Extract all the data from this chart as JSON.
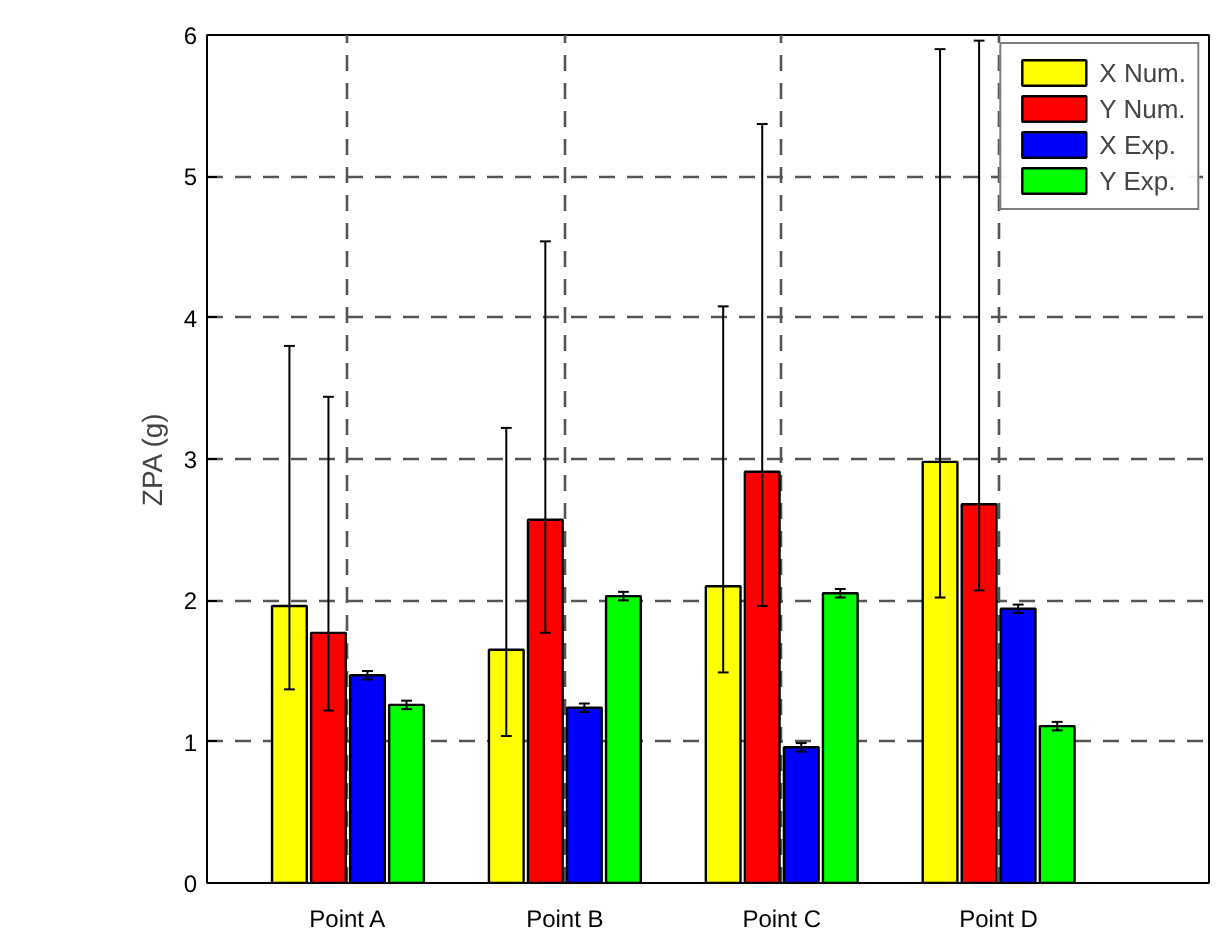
{
  "chart_data": {
    "type": "bar",
    "ylabel": "ZPA (g)",
    "categories": [
      "Point A",
      "Point B",
      "Point C",
      "Point D"
    ],
    "series": [
      {
        "name": "X Num.",
        "color": "#ffff00",
        "values": [
          1.96,
          1.65,
          2.1,
          2.98
        ],
        "errors": [
          [
            1.37,
            3.8
          ],
          [
            1.04,
            3.22
          ],
          [
            1.49,
            4.08
          ],
          [
            2.02,
            5.9
          ]
        ]
      },
      {
        "name": "Y Num.",
        "color": "#ff0000",
        "values": [
          1.77,
          2.57,
          2.91,
          2.68
        ],
        "errors": [
          [
            1.22,
            3.44
          ],
          [
            1.77,
            4.54
          ],
          [
            1.96,
            5.37
          ],
          [
            2.07,
            5.96
          ]
        ]
      },
      {
        "name": "X Exp.",
        "color": "#0000ff",
        "values": [
          1.47,
          1.24,
          0.96,
          1.94
        ],
        "errors": [
          0.03,
          0.03,
          0.03,
          0.03
        ]
      },
      {
        "name": "Y Exp.",
        "color": "#00ff00",
        "values": [
          1.26,
          2.03,
          2.05,
          1.11
        ],
        "errors": [
          0.03,
          0.03,
          0.03,
          0.03
        ]
      }
    ],
    "ylim": [
      0,
      6
    ],
    "yticks": [
      0,
      1,
      2,
      3,
      4,
      5,
      6
    ],
    "grid": true,
    "legend": "top right"
  }
}
